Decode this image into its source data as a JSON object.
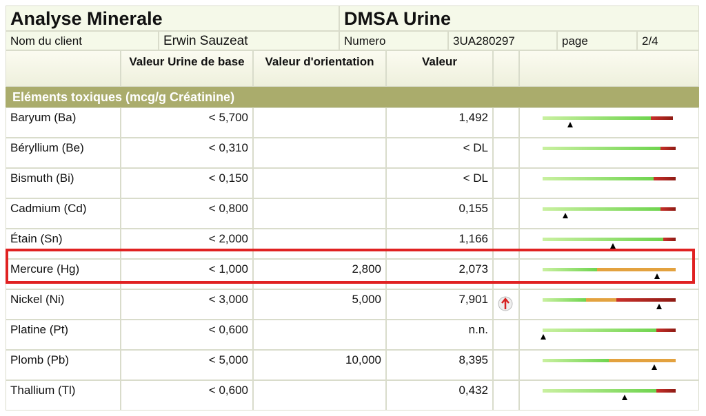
{
  "header": {
    "title": "Analyse Minerale",
    "test": "DMSA Urine"
  },
  "client": {
    "name_label": "Nom du client",
    "name": "Erwin Sauzeat",
    "number_label": "Numero",
    "number": "3UA280297",
    "page_label": "page",
    "page": "2/4"
  },
  "columns": {
    "base": "Valeur Urine de base",
    "orientation": "Valeur d'orientation",
    "value": "Valeur"
  },
  "section": "Eléments toxiques (mcg/g Créatinine)",
  "rows": [
    {
      "name": "Baryum (Ba)",
      "base": "< 5,700",
      "value": "1,492"
    },
    {
      "name": "Béryllium (Be)",
      "base": "< 0,310",
      "value": "< DL"
    },
    {
      "name": "Bismuth (Bi)",
      "base": "< 0,150",
      "value": "< DL"
    },
    {
      "name": "Cadmium (Cd)",
      "base": "< 0,800",
      "value": "0,155"
    },
    {
      "name": "Étain (Sn)",
      "base": "< 2,000",
      "value": "1,166"
    },
    {
      "name": "Mercure (Hg)",
      "base": "< 1,000",
      "orientation": "2,800",
      "value": "2,073"
    },
    {
      "name": "Nickel (Ni)",
      "base": "< 3,000",
      "orientation": "5,000",
      "value": "7,901"
    },
    {
      "name": "Platine (Pt)",
      "base": "< 0,600",
      "value": "n.n."
    },
    {
      "name": "Plomb (Pb)",
      "base": "< 5,000",
      "orientation": "10,000",
      "value": "8,395"
    },
    {
      "name": "Thallium (Tl)",
      "base": "< 0,600",
      "value": "0,432"
    }
  ]
}
